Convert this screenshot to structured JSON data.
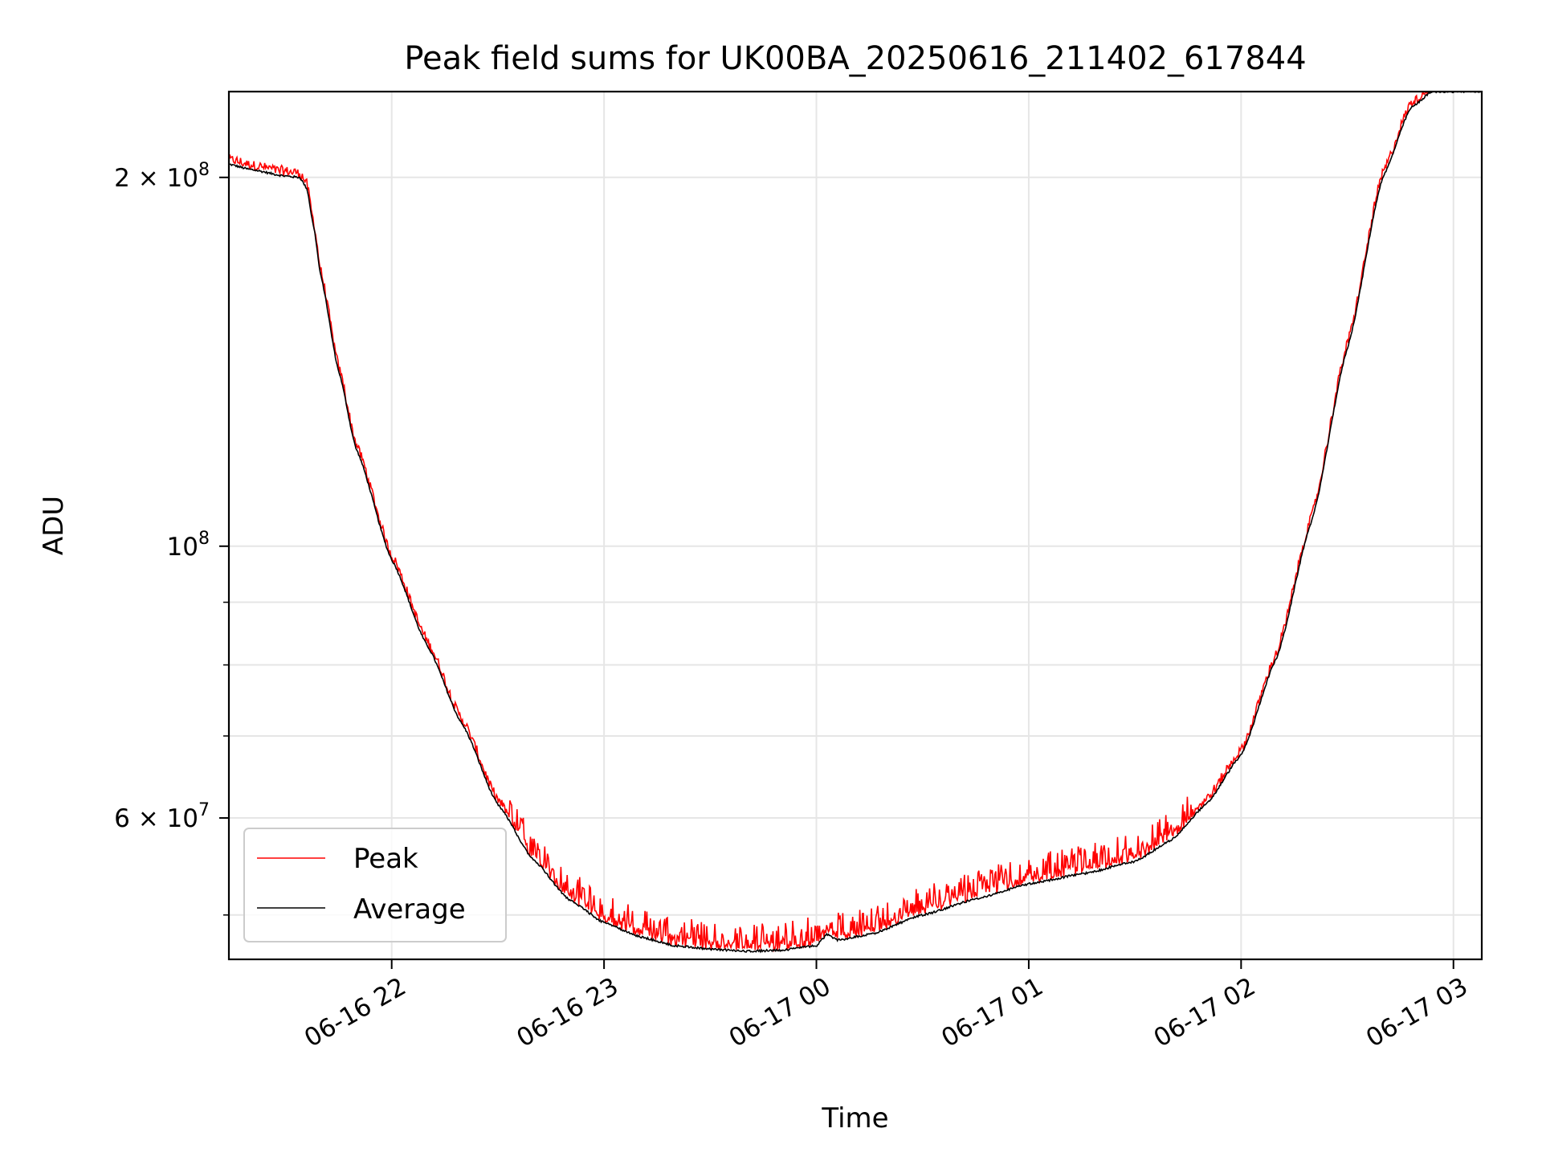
{
  "chart_data": {
    "type": "line",
    "title": "Peak field sums for UK00BA_20250616_211402_617844",
    "xlabel": "Time",
    "ylabel": "ADU",
    "y_scale": "log",
    "ylim": [
      46000000,
      235000000
    ],
    "xlim": [
      "2025-06-16 21:14",
      "2025-06-17 03:08"
    ],
    "grid": true,
    "legend_position": "lower-left",
    "x_ticks": [
      {
        "t": "2025-06-16 22:00",
        "label": "06-16 22"
      },
      {
        "t": "2025-06-16 23:00",
        "label": "06-16 23"
      },
      {
        "t": "2025-06-17 00:00",
        "label": "06-17 00"
      },
      {
        "t": "2025-06-17 01:00",
        "label": "06-17 01"
      },
      {
        "t": "2025-06-17 02:00",
        "label": "06-17 02"
      },
      {
        "t": "2025-06-17 03:00",
        "label": "06-17 03"
      }
    ],
    "y_major_ticks": [
      {
        "value": 200000000,
        "base": "2 × 10",
        "exp": "8"
      },
      {
        "value": 100000000,
        "base": "10",
        "exp": "8"
      },
      {
        "value": 60000000,
        "base": "6 × 10",
        "exp": "7"
      }
    ],
    "y_minor_ticks": [
      50000000,
      70000000,
      80000000,
      90000000
    ],
    "series": [
      {
        "name": "Peak",
        "color": "#ff0000",
        "jitter": true
      },
      {
        "name": "Average",
        "color": "#000000",
        "jitter": false
      }
    ],
    "x": [
      "2025-06-16 21:14",
      "2025-06-16 21:20",
      "2025-06-16 21:30",
      "2025-06-16 21:34",
      "2025-06-16 21:36",
      "2025-06-16 21:38",
      "2025-06-16 21:40",
      "2025-06-16 21:45",
      "2025-06-16 21:50",
      "2025-06-16 22:00",
      "2025-06-16 22:10",
      "2025-06-16 22:20",
      "2025-06-16 22:30",
      "2025-06-16 22:40",
      "2025-06-16 22:50",
      "2025-06-16 23:00",
      "2025-06-16 23:10",
      "2025-06-16 23:20",
      "2025-06-16 23:30",
      "2025-06-16 23:40",
      "2025-06-16 23:50",
      "2025-06-17 00:00",
      "2025-06-17 00:03",
      "2025-06-17 00:06",
      "2025-06-17 00:15",
      "2025-06-17 00:30",
      "2025-06-17 00:45",
      "2025-06-17 01:00",
      "2025-06-17 01:15",
      "2025-06-17 01:30",
      "2025-06-17 01:40",
      "2025-06-17 01:50",
      "2025-06-17 02:00",
      "2025-06-17 02:10",
      "2025-06-17 02:20",
      "2025-06-17 02:30",
      "2025-06-17 02:40",
      "2025-06-17 02:48",
      "2025-06-17 02:54",
      "2025-06-17 03:00",
      "2025-06-17 03:08"
    ],
    "average": [
      205000000,
      203000000,
      200500000,
      200000000,
      196000000,
      182000000,
      166000000,
      139000000,
      120000000,
      97500000,
      83000000,
      71500000,
      61500000,
      55500000,
      51500000,
      49300000,
      48000000,
      47200000,
      46900000,
      46700000,
      46800000,
      47200000,
      48200000,
      47700000,
      48200000,
      50000000,
      51500000,
      53000000,
      54000000,
      55300000,
      57500000,
      61500000,
      67500000,
      81000000,
      105000000,
      145000000,
      200000000,
      228000000,
      235000000,
      235000000,
      235000000
    ],
    "peak_offset_fraction": 0.018
  }
}
